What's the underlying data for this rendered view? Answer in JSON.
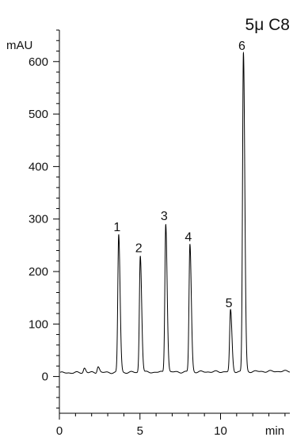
{
  "chart_data": {
    "type": "line",
    "title": "5μ C8",
    "xlabel": "min",
    "ylabel": "mAU",
    "xlim": [
      0,
      14.3
    ],
    "ylim": [
      -70,
      660
    ],
    "x_ticks": [
      {
        "value": 0,
        "label": "0"
      },
      {
        "value": 5,
        "label": "5"
      },
      {
        "value": 10,
        "label": "10"
      }
    ],
    "y_ticks": [
      {
        "value": 0,
        "label": "0"
      },
      {
        "value": 100,
        "label": "100"
      },
      {
        "value": 200,
        "label": "200"
      },
      {
        "value": 300,
        "label": "300"
      },
      {
        "value": 400,
        "label": "400"
      },
      {
        "value": 500,
        "label": "500"
      },
      {
        "value": 600,
        "label": "600"
      }
    ],
    "x_minor_step": 1,
    "y_minor_step": 20,
    "grid": false,
    "legend": "none",
    "baseline": {
      "start": 7,
      "end": 10
    },
    "peaks": [
      {
        "label": "1",
        "rt": 3.68,
        "height": 262
      },
      {
        "label": "2",
        "rt": 5.02,
        "height": 222
      },
      {
        "label": "3",
        "rt": 6.6,
        "height": 283
      },
      {
        "label": "4",
        "rt": 8.1,
        "height": 243
      },
      {
        "label": "5",
        "rt": 10.62,
        "height": 117
      },
      {
        "label": "6",
        "rt": 11.42,
        "height": 607
      }
    ],
    "minor_features": [
      {
        "rt": 2.4,
        "height": 12
      },
      {
        "rt": 1.55,
        "height": 9
      }
    ]
  }
}
